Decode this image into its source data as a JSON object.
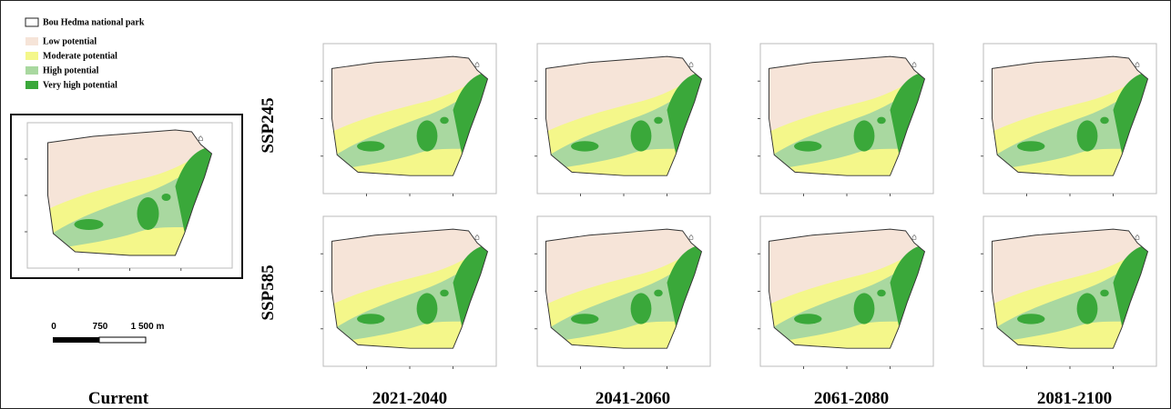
{
  "legend": {
    "boundary": "Bou Hedma national park",
    "items": [
      {
        "label": "Low potential",
        "color": "#f6e4d8"
      },
      {
        "label": "Moderate potential",
        "color": "#f4f78a"
      },
      {
        "label": "High potential",
        "color": "#a9d8a0"
      },
      {
        "label": "Very high potential",
        "color": "#3aa83a"
      }
    ]
  },
  "scale_bar": {
    "labels": [
      "0",
      "750",
      "1 500 m"
    ]
  },
  "rows": [
    "SSP245",
    "SSP585"
  ],
  "columns": [
    "Current",
    "2021-2040",
    "2041-2060",
    "2061-2080",
    "2081-2100"
  ]
}
